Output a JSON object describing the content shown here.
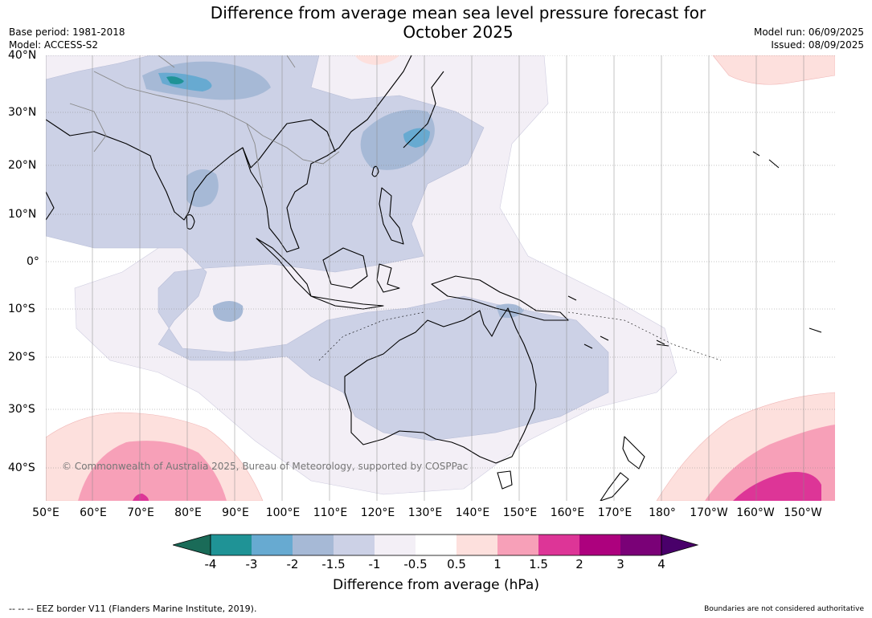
{
  "title_line1": "Difference from average mean sea level pressure forecast for",
  "title_line2": "October 2025",
  "base_period": "Base period: 1981-2018",
  "model": "Model: ACCESS-S2",
  "model_run": "Model run: 06/09/2025",
  "issued": "Issued: 08/09/2025",
  "lat_labels": [
    "40°N",
    "30°N",
    "20°N",
    "10°N",
    "0°",
    "10°S",
    "20°S",
    "30°S",
    "40°S"
  ],
  "lon_labels": [
    "50°E",
    "60°E",
    "70°E",
    "80°E",
    "90°E",
    "100°E",
    "110°E",
    "120°E",
    "130°E",
    "140°E",
    "150°E",
    "160°E",
    "170°E",
    "180°",
    "170°W",
    "160°W",
    "150°W"
  ],
  "copyright": "© Commonwealth of Australia 2025, Bureau of Meteorology, supported by COSPPac",
  "colorbar": {
    "label": "Difference from average (hPa)",
    "ticks": [
      "-4",
      "-3",
      "-2",
      "-1.5",
      "-1",
      "-0.5",
      "0.5",
      "1",
      "1.5",
      "2",
      "3",
      "4"
    ],
    "colors": [
      "#1a6b58",
      "#1f9396",
      "#67aad1",
      "#a6b9d6",
      "#ccd1e6",
      "#f3eff6",
      "#ffffff",
      "#fde0dd",
      "#f7a0b8",
      "#dd3597",
      "#ad017e",
      "#7a0177",
      "#49006a"
    ]
  },
  "eez_note": "--  --  -- EEZ border V11 (Flanders Marine Institute, 2019).",
  "boundaries_note": "Boundaries are not considered authoritative"
}
